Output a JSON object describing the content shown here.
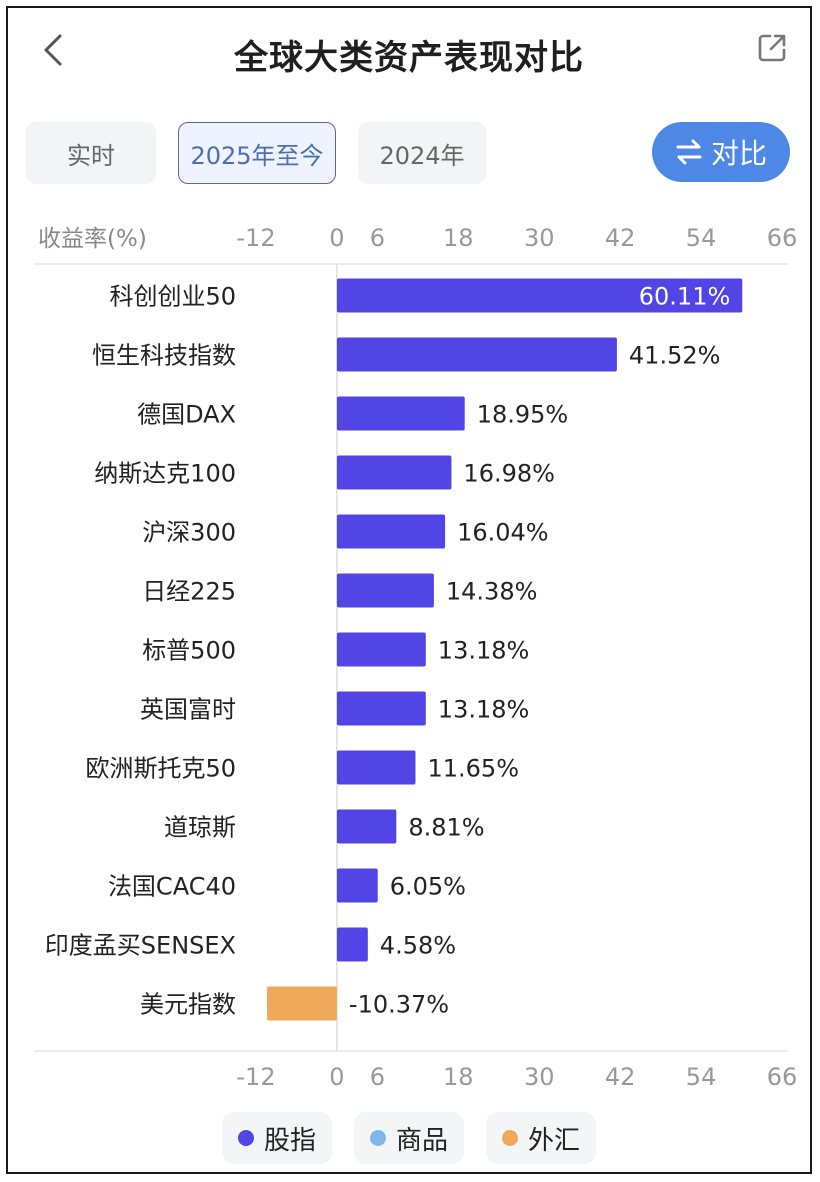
{
  "header": {
    "title": "全球大类资产表现对比"
  },
  "tabs": [
    {
      "label": "实时",
      "active": false
    },
    {
      "label": "2025年至今",
      "active": true
    },
    {
      "label": "2024年",
      "active": false
    }
  ],
  "compare_button": {
    "label": "对比",
    "icon": "swap-arrows-icon"
  },
  "legend": [
    {
      "label": "股指",
      "color": "#5145e6"
    },
    {
      "label": "商品",
      "color": "#7fb7ea"
    },
    {
      "label": "外汇",
      "color": "#f0a85a"
    }
  ],
  "chart_data": {
    "type": "bar",
    "orientation": "horizontal",
    "ylabel": "收益率(%)",
    "xlim": [
      -12,
      66
    ],
    "ticks": [
      -12,
      0,
      6,
      18,
      30,
      42,
      54,
      66
    ],
    "categories": [
      "科创创业50",
      "恒生科技指数",
      "德国DAX",
      "纳斯达克100",
      "沪深300",
      "日经225",
      "标普500",
      "英国富时",
      "欧洲斯托克50",
      "道琼斯",
      "法国CAC40",
      "印度孟买SENSEX",
      "美元指数"
    ],
    "values": [
      60.11,
      41.52,
      18.95,
      16.98,
      16.04,
      14.38,
      13.18,
      13.18,
      11.65,
      8.81,
      6.05,
      4.58,
      -10.37
    ],
    "value_labels": [
      "60.11%",
      "41.52%",
      "18.95%",
      "16.98%",
      "16.04%",
      "14.38%",
      "13.18%",
      "13.18%",
      "11.65%",
      "8.81%",
      "6.05%",
      "4.58%",
      "-10.37%"
    ],
    "groups": [
      "股指",
      "股指",
      "股指",
      "股指",
      "股指",
      "股指",
      "股指",
      "股指",
      "股指",
      "股指",
      "股指",
      "股指",
      "外汇"
    ],
    "grid": true,
    "legend_position": "bottom"
  }
}
